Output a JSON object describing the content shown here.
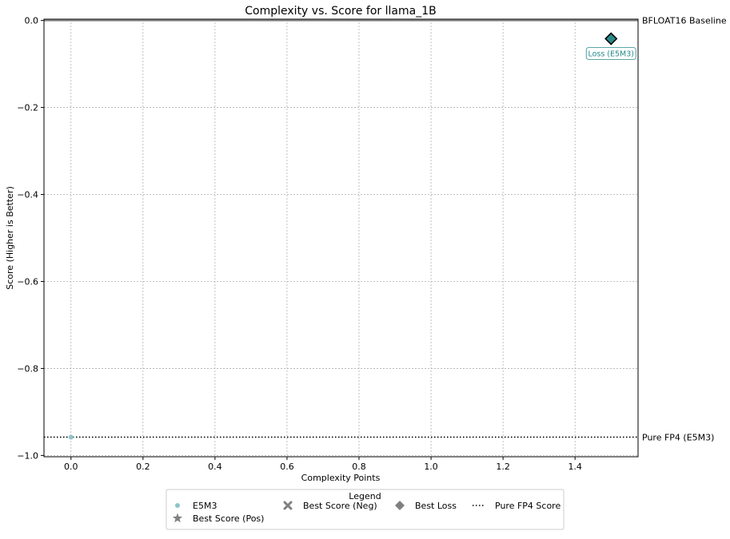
{
  "chart_data": {
    "type": "scatter",
    "title": "Complexity vs. Score for llama_1B",
    "xlabel": "Complexity Points",
    "ylabel": "Score (Higher is Better)",
    "xlim": [
      -0.075,
      1.575
    ],
    "ylim": [
      -1.003,
      0.003
    ],
    "x_ticks": [
      0.0,
      0.2,
      0.4,
      0.6,
      0.8,
      1.0,
      1.2,
      1.4
    ],
    "x_tick_labels": [
      "0.0",
      "0.2",
      "0.4",
      "0.6",
      "0.8",
      "1.0",
      "1.2",
      "1.4"
    ],
    "y_ticks": [
      0.0,
      -0.2,
      -0.4,
      -0.6,
      -0.8,
      -1.0
    ],
    "y_tick_labels": [
      "0.0",
      "−0.2",
      "−0.4",
      "−0.6",
      "−0.8",
      "−1.0"
    ],
    "grid": true,
    "series": [
      {
        "name": "E5M3",
        "marker": "circle",
        "color": "#8fc4cc",
        "points": [
          {
            "x": 0.0,
            "y": -0.958
          }
        ]
      }
    ],
    "best_loss": {
      "x": 1.5,
      "y": -0.042,
      "color": "#2a8a8a",
      "annotation": "Loss (E5M3)"
    },
    "hlines": [
      {
        "y": 0.0,
        "label": "BFLOAT16 Baseline",
        "style": "solid",
        "color": "#808080"
      },
      {
        "y": -0.958,
        "label": "Pure FP4 (E5M3)",
        "style": "dotted",
        "color": "#000000"
      }
    ],
    "legend": {
      "title": "Legend",
      "placement": "bottom-center",
      "items": [
        {
          "label": "E5M3",
          "symbol": "circle",
          "color": "#8fc4cc"
        },
        {
          "label": "Best Score (Neg)",
          "symbol": "x",
          "color": "#808080"
        },
        {
          "label": "Best Loss",
          "symbol": "diamond",
          "color": "#808080"
        },
        {
          "label": "Pure FP4 Score",
          "symbol": "dotted-line",
          "color": "#000000"
        },
        {
          "label": "Best Score (Pos)",
          "symbol": "star",
          "color": "#808080"
        }
      ]
    }
  }
}
